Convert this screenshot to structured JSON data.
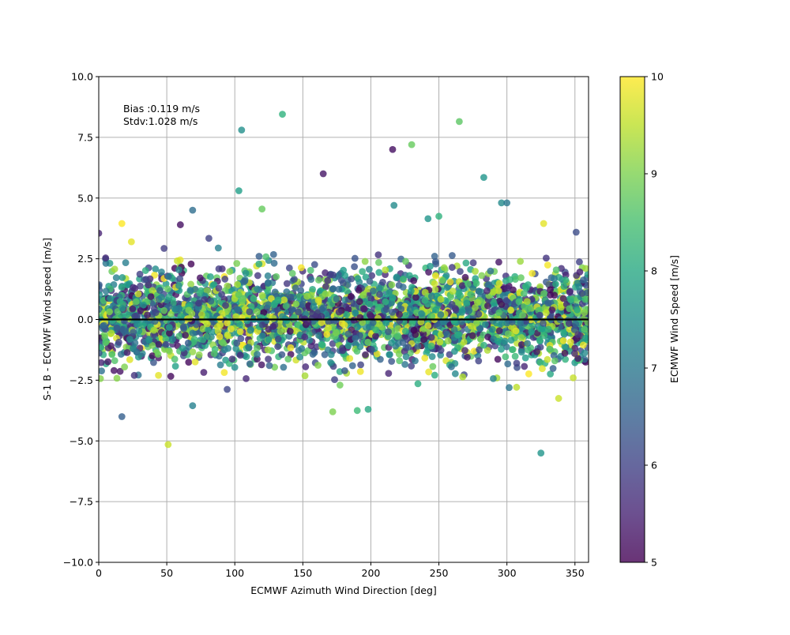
{
  "chart_data": {
    "type": "scatter",
    "xlabel": "ECMWF Azimuth Wind Direction [deg]",
    "ylabel": "S-1 B - ECMWF Wind speed [m/s]",
    "xlim": [
      0,
      360
    ],
    "ylim": [
      -10,
      10
    ],
    "x_ticks": [
      0,
      50,
      100,
      150,
      200,
      250,
      300,
      350
    ],
    "y_ticks": [
      -10.0,
      -7.5,
      -5.0,
      -2.5,
      0.0,
      2.5,
      5.0,
      7.5,
      10.0
    ],
    "x_tick_labels": [
      "0",
      "50",
      "100",
      "150",
      "200",
      "250",
      "300",
      "350"
    ],
    "y_tick_labels": [
      "−10.0",
      "−7.5",
      "−5.0",
      "−2.5",
      "0.0",
      "2.5",
      "5.0",
      "7.5",
      "10.0"
    ],
    "grid": true,
    "reference_line_y": 0,
    "annotation": {
      "bias": "Bias :0.119 m/s",
      "stdv": "Stdv:1.028 m/s"
    },
    "colorbar": {
      "label": "ECMWF Wind Speed [m/s]",
      "range": [
        5,
        10
      ],
      "ticks": [
        5,
        6,
        7,
        8,
        9,
        10
      ],
      "tick_labels": [
        "5",
        "6",
        "7",
        "8",
        "9",
        "10"
      ],
      "colormap": "viridis"
    },
    "points_note_outliers": [
      {
        "x": 0,
        "y": 3.55,
        "c": 5.5
      },
      {
        "x": 17,
        "y": 3.95,
        "c": 10
      },
      {
        "x": 17,
        "y": -4.0,
        "c": 6.5
      },
      {
        "x": 24,
        "y": 3.2,
        "c": 9.8
      },
      {
        "x": 51,
        "y": -5.15,
        "c": 9.6
      },
      {
        "x": 60,
        "y": 3.9,
        "c": 5.2
      },
      {
        "x": 69,
        "y": 4.5,
        "c": 6.8
      },
      {
        "x": 69,
        "y": -3.55,
        "c": 7.2
      },
      {
        "x": 105,
        "y": 7.8,
        "c": 7.5
      },
      {
        "x": 103,
        "y": 5.3,
        "c": 7.8
      },
      {
        "x": 120,
        "y": 4.55,
        "c": 8.8
      },
      {
        "x": 135,
        "y": 8.45,
        "c": 8.2
      },
      {
        "x": 165,
        "y": 6.0,
        "c": 5.3
      },
      {
        "x": 172,
        "y": -3.8,
        "c": 9.0
      },
      {
        "x": 190,
        "y": -3.75,
        "c": 8.4
      },
      {
        "x": 198,
        "y": -3.7,
        "c": 8.0
      },
      {
        "x": 216,
        "y": 7.0,
        "c": 5.2
      },
      {
        "x": 230,
        "y": 7.2,
        "c": 8.8
      },
      {
        "x": 217,
        "y": 4.7,
        "c": 7.4
      },
      {
        "x": 242,
        "y": 4.15,
        "c": 7.6
      },
      {
        "x": 250,
        "y": 4.25,
        "c": 8.2
      },
      {
        "x": 265,
        "y": 8.15,
        "c": 8.7
      },
      {
        "x": 283,
        "y": 5.85,
        "c": 7.6
      },
      {
        "x": 296,
        "y": 4.8,
        "c": 7.4
      },
      {
        "x": 300,
        "y": 4.8,
        "c": 7.0
      },
      {
        "x": 325,
        "y": -5.5,
        "c": 7.6
      },
      {
        "x": 327,
        "y": 3.95,
        "c": 9.8
      },
      {
        "x": 338,
        "y": -3.25,
        "c": 9.6
      }
    ],
    "bulk_distribution": {
      "n": 3200,
      "y_mean": 0.119,
      "y_std": 1.028,
      "seed": 7
    }
  }
}
